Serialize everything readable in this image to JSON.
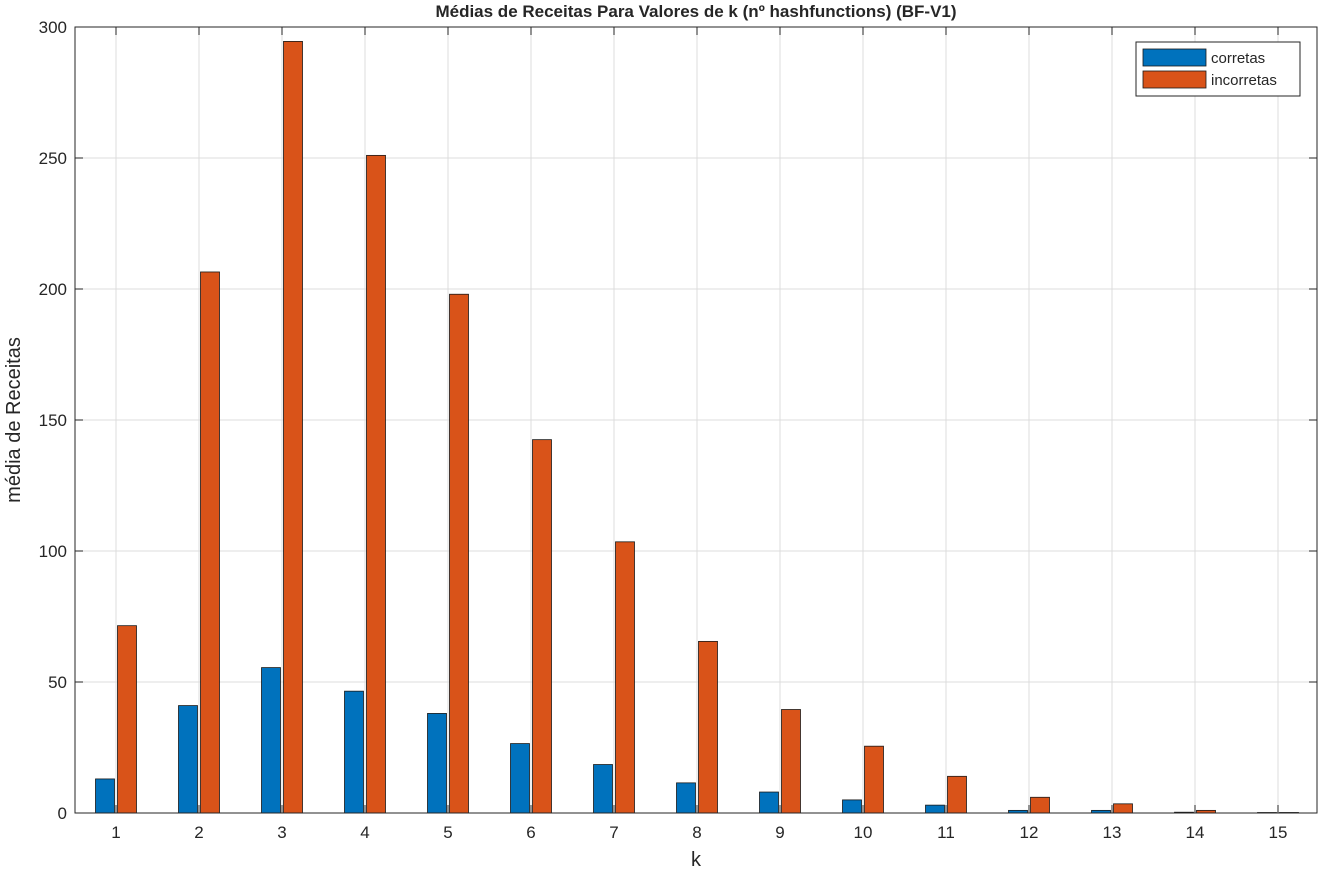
{
  "chart_data": {
    "type": "bar",
    "title": "Médias de Receitas Para Valores de k (nº hashfunctions) (BF-V1)",
    "xlabel": "k",
    "ylabel": "média de Receitas",
    "categories": [
      "1",
      "2",
      "3",
      "4",
      "5",
      "6",
      "7",
      "8",
      "9",
      "10",
      "11",
      "12",
      "13",
      "14",
      "15"
    ],
    "ylim": [
      0,
      300
    ],
    "yticks": [
      "0",
      "50",
      "100",
      "150",
      "200",
      "250",
      "300"
    ],
    "grid": true,
    "legend_position": "top-right",
    "series": [
      {
        "name": "corretas",
        "color": "#0072BD",
        "values": [
          13,
          41,
          55.5,
          46.5,
          38,
          26.5,
          18.5,
          11.5,
          8,
          5,
          3,
          1,
          1,
          0.3,
          0.1
        ]
      },
      {
        "name": "incorretas",
        "color": "#D95319",
        "values": [
          71.5,
          206.5,
          294.5,
          251,
          198,
          142.5,
          103.5,
          65.5,
          39.5,
          25.5,
          14,
          6,
          3.5,
          1,
          0.2
        ]
      }
    ]
  }
}
